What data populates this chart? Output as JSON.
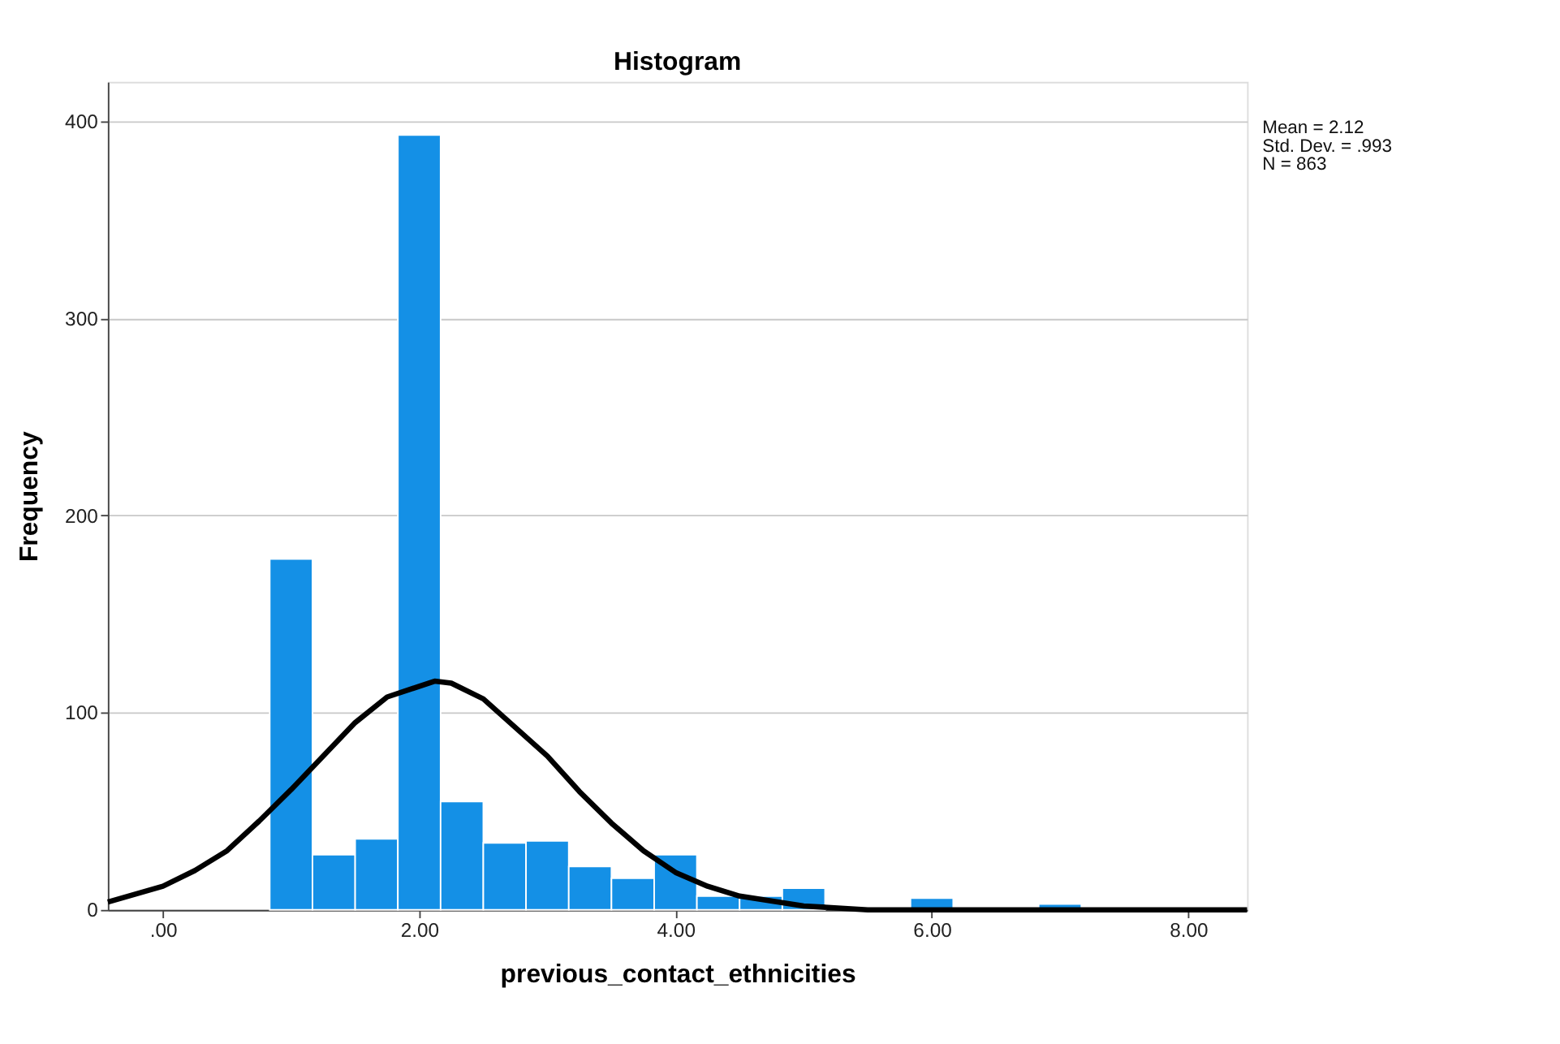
{
  "chart_data": {
    "type": "histogram",
    "title": "Histogram",
    "xlabel": "previous_contact_ethnicities",
    "ylabel": "Frequency",
    "bins": [
      0.8333,
      1.1667,
      1.5,
      1.8333,
      2.1667,
      2.5,
      2.8333,
      3.1667,
      3.5,
      3.8333,
      4.1667,
      4.5,
      4.8333,
      5.1667,
      5.5,
      5.8333,
      6.1667,
      6.5,
      6.8333,
      7.1667
    ],
    "values": [
      178,
      28,
      36,
      393,
      55,
      34,
      35,
      22,
      16,
      28,
      7,
      7,
      11,
      0,
      0,
      6,
      0,
      0,
      3
    ],
    "color": "#1490e6",
    "series": [
      {
        "type": "line",
        "color": "#000000",
        "x": [
          -0.43,
          0,
          0.25,
          0.5,
          0.75,
          1.0,
          1.5,
          1.75,
          2.12,
          2.25,
          2.5,
          3.0,
          3.25,
          3.5,
          3.75,
          4.0,
          4.25,
          4.5,
          5.0,
          5.5,
          6.0,
          7.0,
          8.46
        ],
        "values": [
          4,
          12,
          20,
          30,
          45,
          61,
          95,
          108,
          116,
          115,
          107,
          78,
          60,
          44,
          30,
          19,
          12,
          7,
          2,
          0,
          0,
          0,
          0
        ]
      }
    ],
    "xlim": [
      -0.43,
      8.46
    ],
    "ylim": [
      0,
      420
    ],
    "xticks": [
      {
        "value": 0,
        "label": ".00"
      },
      {
        "value": 2,
        "label": "2.00"
      },
      {
        "value": 4,
        "label": "4.00"
      },
      {
        "value": 6,
        "label": "6.00"
      },
      {
        "value": 8,
        "label": "8.00"
      }
    ],
    "yticks": [
      0,
      100,
      200,
      300,
      400
    ],
    "grid": "y",
    "annotations": [
      "Mean = 2.12",
      "Std. Dev. = .993",
      "N = 863"
    ]
  }
}
